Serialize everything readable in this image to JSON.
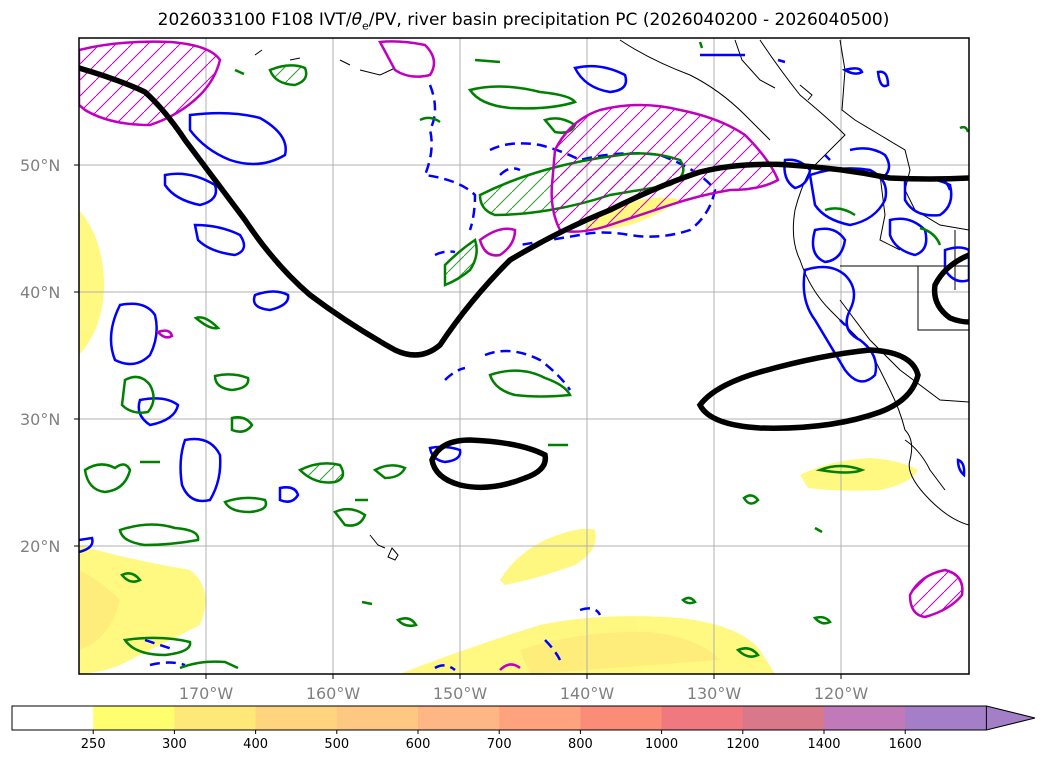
{
  "title": {
    "prefix": "2026033100 F108 IVT/",
    "theta": "θ",
    "theta_sub": "e",
    "suffix": "/PV, river basin precipitation PC (2026040200 - 2026040500)"
  },
  "lat_labels": [
    "50°N",
    "40°N",
    "30°N",
    "20°N"
  ],
  "lon_labels": [
    "170°W",
    "160°W",
    "150°W",
    "140°W",
    "130°W",
    "120°W"
  ],
  "colorbar": {
    "levels": [
      "250",
      "300",
      "400",
      "500",
      "600",
      "700",
      "800",
      "1000",
      "1200",
      "1400",
      "1600"
    ],
    "colors": [
      "#ffffff",
      "#fefe6f",
      "#fee878",
      "#fed47e",
      "#fec883",
      "#feb685",
      "#fea37e",
      "#fb8c78",
      "#f0797f",
      "#d9788a",
      "#c07ab9",
      "#a47ec6"
    ]
  },
  "legend_colors": {
    "ivt_contour": "#000000",
    "theta_e": "#0000ff",
    "pv": "#008000",
    "precip": "#c000c0"
  }
}
